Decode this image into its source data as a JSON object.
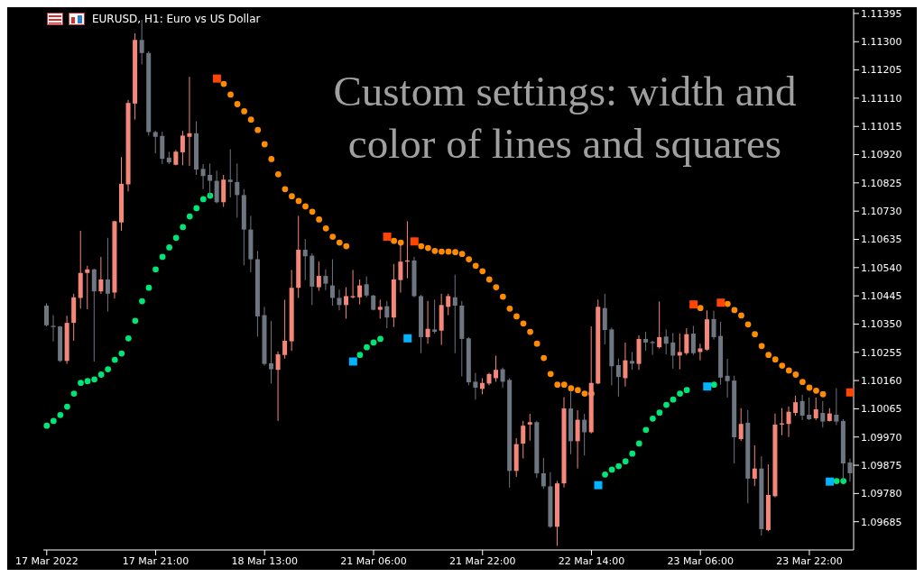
{
  "chart_data": {
    "type": "candlestick",
    "title": "Custom settings: width and color of lines and squares",
    "subtitle": "EURUSD, H1:  Euro vs US Dollar",
    "categories": [
      "17 Mar 2022",
      null,
      null,
      null,
      null,
      null,
      null,
      null,
      null,
      null,
      null,
      null,
      null,
      null,
      null,
      null,
      "17 Mar 21:00",
      null,
      null,
      null,
      null,
      null,
      null,
      null,
      null,
      null,
      null,
      null,
      null,
      null,
      null,
      null,
      "18 Mar 13:00",
      null,
      null,
      null,
      null,
      null,
      null,
      null,
      null,
      null,
      null,
      null,
      null,
      null,
      null,
      null,
      "21 Mar 06:00",
      null,
      null,
      null,
      null,
      null,
      null,
      null,
      null,
      null,
      null,
      null,
      null,
      null,
      null,
      null,
      "21 Mar 22:00",
      null,
      null,
      null,
      null,
      null,
      null,
      null,
      null,
      null,
      null,
      null,
      null,
      null,
      null,
      null,
      "22 Mar 14:00",
      null,
      null,
      null,
      null,
      null,
      null,
      null,
      null,
      null,
      null,
      null,
      null,
      null,
      null,
      null,
      "23 Mar 06:00",
      null,
      null,
      null,
      null,
      null,
      null,
      null,
      null,
      null,
      null,
      null,
      null,
      null,
      null,
      null,
      "23 Mar 22:00",
      null,
      null,
      null,
      null,
      null,
      null
    ],
    "ohlc": [
      [
        1.10412,
        1.1042,
        1.10342,
        1.10346
      ],
      [
        1.10344,
        1.1038,
        1.10292,
        1.1034
      ],
      [
        1.10342,
        1.10344,
        1.10222,
        1.10226
      ],
      [
        1.10226,
        1.10378,
        1.10216,
        1.10354
      ],
      [
        1.10354,
        1.10452,
        1.10294,
        1.1044
      ],
      [
        1.10438,
        1.10664,
        1.10402,
        1.10522
      ],
      [
        1.10522,
        1.10546,
        1.104,
        1.10534
      ],
      [
        1.10534,
        1.10536,
        1.10224,
        1.1046
      ],
      [
        1.1046,
        1.10576,
        1.10452,
        1.105
      ],
      [
        1.105,
        1.1064,
        1.10392,
        1.10452
      ],
      [
        1.10456,
        1.10698,
        1.10436,
        1.10696
      ],
      [
        1.10692,
        1.10912,
        1.10664,
        1.10822
      ],
      [
        1.1082,
        1.11104,
        1.10796,
        1.11094
      ],
      [
        1.11092,
        1.11328,
        1.11038,
        1.11306
      ],
      [
        1.11306,
        1.11374,
        1.11224,
        1.11262
      ],
      [
        1.11262,
        1.11268,
        1.10984,
        1.10996
      ],
      [
        1.10996,
        1.11,
        1.10924,
        1.1098
      ],
      [
        1.10983,
        1.10997,
        1.10888,
        1.10906
      ],
      [
        1.1091,
        1.1093,
        1.10888,
        1.10894
      ],
      [
        1.10886,
        1.10936,
        1.10884,
        1.1093
      ],
      [
        1.10928,
        1.11,
        1.10884,
        1.10984
      ],
      [
        1.1098,
        1.11182,
        1.10882,
        1.10992
      ],
      [
        1.10992,
        1.11032,
        1.10852,
        1.1087
      ],
      [
        1.10872,
        1.10888,
        1.10804,
        1.10848
      ],
      [
        1.10852,
        1.1089,
        1.1078,
        1.10832
      ],
      [
        1.10832,
        1.10866,
        1.10756,
        1.1076
      ],
      [
        1.1076,
        1.10852,
        1.10744,
        1.10836
      ],
      [
        1.10836,
        1.10938,
        1.10776,
        1.10828
      ],
      [
        1.10828,
        1.1089,
        1.10708,
        1.10784
      ],
      [
        1.10784,
        1.10804,
        1.10548,
        1.10668
      ],
      [
        1.10668,
        1.10714,
        1.10524,
        1.10568
      ],
      [
        1.10568,
        1.10596,
        1.10308,
        1.10376
      ],
      [
        1.1038,
        1.10408,
        1.1021,
        1.10216
      ],
      [
        1.10218,
        1.1036,
        1.1015,
        1.10198
      ],
      [
        1.10196,
        1.10258,
        1.10024,
        1.10248
      ],
      [
        1.10246,
        1.10432,
        1.10234,
        1.10294
      ],
      [
        1.10292,
        1.10532,
        1.1026,
        1.10472
      ],
      [
        1.10472,
        1.10714,
        1.10438,
        1.106
      ],
      [
        1.106,
        1.10636,
        1.10498,
        1.10578
      ],
      [
        1.1058,
        1.10588,
        1.10414,
        1.10476
      ],
      [
        1.10474,
        1.1056,
        1.10462,
        1.10512
      ],
      [
        1.10512,
        1.10534,
        1.10464,
        1.10486
      ],
      [
        1.1048,
        1.10568,
        1.10412,
        1.10438
      ],
      [
        1.10438,
        1.10466,
        1.10396,
        1.10414
      ],
      [
        1.10414,
        1.10474,
        1.10368,
        1.10444
      ],
      [
        1.1044,
        1.10532,
        1.10436,
        1.10444
      ],
      [
        1.1044,
        1.105,
        1.10416,
        1.1048
      ],
      [
        1.10484,
        1.1051,
        1.1044,
        1.10446
      ],
      [
        1.10446,
        1.10448,
        1.10396,
        1.10398
      ],
      [
        1.10398,
        1.10432,
        1.10368,
        1.10408
      ],
      [
        1.1041,
        1.10428,
        1.10336,
        1.10372
      ],
      [
        1.10372,
        1.10552,
        1.1034,
        1.105
      ],
      [
        1.10498,
        1.1062,
        1.10456,
        1.1056
      ],
      [
        1.1056,
        1.10696,
        1.10504,
        1.10564
      ],
      [
        1.10564,
        1.10576,
        1.1044,
        1.10444
      ],
      [
        1.10444,
        1.10448,
        1.10252,
        1.10306
      ],
      [
        1.10306,
        1.10428,
        1.10284,
        1.10334
      ],
      [
        1.10332,
        1.10432,
        1.10318,
        1.10324
      ],
      [
        1.10328,
        1.10452,
        1.1028,
        1.10414
      ],
      [
        1.10408,
        1.10452,
        1.1038,
        1.10444
      ],
      [
        1.1044,
        1.10516,
        1.10252,
        1.10412
      ],
      [
        1.10412,
        1.10428,
        1.10174,
        1.103
      ],
      [
        1.10302,
        1.10306,
        1.10144,
        1.10154
      ],
      [
        1.10156,
        1.10186,
        1.10096,
        1.10136
      ],
      [
        1.10132,
        1.10168,
        1.10114,
        1.10152
      ],
      [
        1.1015,
        1.10186,
        1.10144,
        1.10182
      ],
      [
        1.10168,
        1.10244,
        1.10156,
        1.10196
      ],
      [
        1.10198,
        1.10204,
        1.10136,
        1.10156
      ],
      [
        1.10162,
        1.10168,
        1.098,
        1.09856
      ],
      [
        1.09856,
        1.09966,
        1.09836,
        1.09946
      ],
      [
        1.09948,
        1.10024,
        1.09898,
        1.10008
      ],
      [
        1.10012,
        1.10048,
        1.09958,
        1.1002
      ],
      [
        1.1002,
        1.10024,
        1.09832,
        1.09848
      ],
      [
        1.09848,
        1.099,
        1.09796,
        1.09804
      ],
      [
        1.09804,
        1.09852,
        1.09664,
        1.09668
      ],
      [
        1.09668,
        1.09822,
        1.09604,
        1.09814
      ],
      [
        1.09814,
        1.10104,
        1.098,
        1.10066
      ],
      [
        1.10066,
        1.10128,
        1.09912,
        1.09956
      ],
      [
        1.09956,
        1.1006,
        1.09864,
        1.10028
      ],
      [
        1.10028,
        1.10048,
        1.09908,
        1.09986
      ],
      [
        1.09986,
        1.10342,
        1.09982,
        1.10152
      ],
      [
        1.1015,
        1.10432,
        1.10148,
        1.10408
      ],
      [
        1.10404,
        1.10452,
        1.10282,
        1.1033
      ],
      [
        1.10332,
        1.10338,
        1.10144,
        1.10208
      ],
      [
        1.10212,
        1.10234,
        1.10106,
        1.10172
      ],
      [
        1.10168,
        1.10288,
        1.1014,
        1.10228
      ],
      [
        1.10226,
        1.10256,
        1.10196,
        1.10217
      ],
      [
        1.10216,
        1.10312,
        1.10196,
        1.103
      ],
      [
        1.103,
        1.10324,
        1.1026,
        1.10288
      ],
      [
        1.1029,
        1.10294,
        1.10246,
        1.10286
      ],
      [
        1.10272,
        1.10426,
        1.10268,
        1.10306
      ],
      [
        1.10308,
        1.10332,
        1.10248,
        1.10284
      ],
      [
        1.10288,
        1.1032,
        1.102,
        1.10244
      ],
      [
        1.10244,
        1.10318,
        1.10198,
        1.10256
      ],
      [
        1.10252,
        1.10336,
        1.10246,
        1.10316
      ],
      [
        1.10318,
        1.10344,
        1.10246,
        1.10252
      ],
      [
        1.10256,
        1.10284,
        1.10228,
        1.10268
      ],
      [
        1.10264,
        1.10396,
        1.1026,
        1.10366
      ],
      [
        1.10367,
        1.10395,
        1.10298,
        1.10306
      ],
      [
        1.1031,
        1.10358,
        1.10146,
        1.1017
      ],
      [
        1.10176,
        1.10233,
        1.10103,
        1.10158
      ],
      [
        1.1016,
        1.10176,
        1.09881,
        1.09969
      ],
      [
        1.09963,
        1.10067,
        1.09957,
        1.10014
      ],
      [
        1.10018,
        1.10061,
        1.09747,
        1.0983
      ],
      [
        1.0983,
        1.09942,
        1.09805,
        1.09864
      ],
      [
        1.09864,
        1.09905,
        1.09638,
        1.0966
      ],
      [
        1.09657,
        1.09878,
        1.09653,
        1.09775
      ],
      [
        1.09771,
        1.10049,
        1.09767,
        1.10012
      ],
      [
        1.10012,
        1.10067,
        1.09976,
        1.10016
      ],
      [
        1.10014,
        1.10073,
        1.0997,
        1.10055
      ],
      [
        1.10051,
        1.10109,
        1.10042,
        1.10087
      ],
      [
        1.10091,
        1.10112,
        1.10027,
        1.10042
      ],
      [
        1.10045,
        1.10103,
        1.10027,
        1.1003
      ],
      [
        1.10033,
        1.10103,
        1.10027,
        1.10063
      ],
      [
        1.10051,
        1.10091,
        1.10002,
        1.10022
      ],
      [
        1.10024,
        1.10067,
        1.10022,
        1.10049
      ],
      [
        1.10045,
        1.10134,
        1.1001,
        1.10022
      ],
      [
        1.10024,
        1.1003,
        1.09824,
        1.09881
      ],
      [
        1.09884,
        1.09897,
        1.0982,
        1.09848
      ]
    ],
    "colors": [
      "#6e7681",
      "#6e7681",
      "#6e7681",
      "#f5877a",
      "#f5877a",
      "#f5877a",
      "#f5877a",
      "#6e7681",
      "#f5877a",
      "#6e7681",
      "#f5877a",
      "#f5877a",
      "#f5877a",
      "#f5877a",
      "#6e7681",
      "#6e7681",
      "#6e7681",
      "#6e7681",
      "#6e7681",
      "#f5877a",
      "#f5877a",
      "#f5877a",
      "#6e7681",
      "#6e7681",
      "#6e7681",
      "#6e7681",
      "#f5877a",
      "#6e7681",
      "#6e7681",
      "#6e7681",
      "#6e7681",
      "#6e7681",
      "#6e7681",
      "#6e7681",
      "#f5877a",
      "#f5877a",
      "#f5877a",
      "#f5877a",
      "#6e7681",
      "#6e7681",
      "#f5877a",
      "#6e7681",
      "#6e7681",
      "#6e7681",
      "#f5877a",
      "#f5877a",
      "#f5877a",
      "#6e7681",
      "#6e7681",
      "#f5877a",
      "#6e7681",
      "#f5877a",
      "#f5877a",
      "#f5877a",
      "#6e7681",
      "#6e7681",
      "#f5877a",
      "#6e7681",
      "#f5877a",
      "#f5877a",
      "#6e7681",
      "#6e7681",
      "#6e7681",
      "#6e7681",
      "#f5877a",
      "#f5877a",
      "#f5877a",
      "#6e7681",
      "#6e7681",
      "#f5877a",
      "#f5877a",
      "#f5877a",
      "#6e7681",
      "#6e7681",
      "#6e7681",
      "#f5877a",
      "#f5877a",
      "#6e7681",
      "#f5877a",
      "#6e7681",
      "#f5877a",
      "#f5877a",
      "#6e7681",
      "#6e7681",
      "#6e7681",
      "#f5877a",
      "#6e7681",
      "#f5877a",
      "#6e7681",
      "#6e7681",
      "#f5877a",
      "#6e7681",
      "#6e7681",
      "#f5877a",
      "#f5877a",
      "#6e7681",
      "#f5877a",
      "#f5877a",
      "#6e7681",
      "#6e7681",
      "#6e7681",
      "#6e7681",
      "#f5877a",
      "#6e7681",
      "#f5877a",
      "#6e7681",
      "#f5877a",
      "#f5877a",
      "#f5877a",
      "#f5877a",
      "#f5877a",
      "#6e7681",
      "#6e7681",
      "#f5877a",
      "#6e7681",
      "#f5877a",
      "#6e7681",
      "#6e7681",
      "#6e7681"
    ],
    "series": [
      {
        "type": "scatter",
        "marker": "circle",
        "color": "#ff8c00",
        "values": [
          null,
          null,
          null,
          null,
          null,
          null,
          null,
          null,
          null,
          null,
          null,
          null,
          null,
          null,
          null,
          null,
          null,
          null,
          null,
          null,
          null,
          null,
          null,
          null,
          null,
          null,
          1.11158,
          1.11122,
          1.1109,
          1.11066,
          1.11038,
          1.11003,
          1.10955,
          1.10905,
          1.10854,
          1.10804,
          1.1078,
          1.10764,
          1.10746,
          1.10728,
          1.10702,
          1.10672,
          1.10644,
          1.10624,
          1.10612,
          null,
          null,
          null,
          null,
          null,
          null,
          1.1063,
          1.10624,
          null,
          null,
          1.10612,
          1.10606,
          1.10596,
          1.10594,
          1.10594,
          1.10592,
          1.10586,
          1.10568,
          1.10546,
          1.10528,
          1.105,
          1.10474,
          1.10442,
          1.10402,
          1.10376,
          1.10352,
          1.10324,
          1.10284,
          1.10236,
          1.10182,
          1.10146,
          1.10146,
          1.10134,
          1.10128,
          1.10116,
          1.10116,
          null,
          null,
          null,
          null,
          null,
          null,
          null,
          null,
          null,
          null,
          null,
          null,
          null,
          null,
          null,
          1.10404,
          null,
          null,
          null,
          1.10418,
          1.10397,
          1.10379,
          1.10349,
          1.10316,
          1.10276,
          1.10246,
          1.10231,
          1.1021,
          1.10194,
          1.1018,
          1.10155,
          1.10136,
          1.10126,
          1.10114,
          null,
          null,
          null,
          null
        ]
      },
      {
        "type": "scatter",
        "marker": "square",
        "color": "#ff4500",
        "values": [
          null,
          null,
          null,
          null,
          null,
          null,
          null,
          null,
          null,
          null,
          null,
          null,
          null,
          null,
          null,
          null,
          null,
          null,
          null,
          null,
          null,
          null,
          null,
          null,
          null,
          1.11176,
          null,
          null,
          null,
          null,
          null,
          null,
          null,
          null,
          null,
          null,
          null,
          null,
          null,
          null,
          null,
          null,
          null,
          null,
          null,
          null,
          null,
          null,
          null,
          null,
          1.10644,
          null,
          null,
          null,
          1.10628,
          null,
          null,
          null,
          null,
          null,
          null,
          null,
          null,
          null,
          null,
          null,
          null,
          null,
          null,
          null,
          null,
          null,
          null,
          null,
          null,
          null,
          null,
          null,
          null,
          null,
          null,
          null,
          null,
          null,
          null,
          null,
          null,
          null,
          null,
          null,
          null,
          null,
          null,
          null,
          null,
          1.10416,
          null,
          null,
          null,
          1.10422,
          null,
          null,
          null,
          null,
          null,
          null,
          null,
          null,
          null,
          null,
          null,
          null,
          null,
          null,
          null,
          null,
          null,
          null,
          1.1012
        ]
      },
      {
        "type": "scatter",
        "marker": "circle",
        "color": "#00e676",
        "values": [
          1.10008,
          1.10024,
          1.10044,
          1.10072,
          1.10116,
          1.10152,
          1.10158,
          1.10164,
          1.1018,
          1.10198,
          1.1023,
          1.10251,
          1.10302,
          1.10361,
          1.10427,
          1.10472,
          1.10534,
          1.10576,
          1.10608,
          1.1064,
          1.10676,
          1.10712,
          1.1074,
          1.1077,
          1.10782,
          null,
          null,
          null,
          null,
          null,
          null,
          null,
          null,
          null,
          null,
          null,
          null,
          null,
          null,
          null,
          null,
          null,
          null,
          null,
          null,
          null,
          1.10246,
          1.10272,
          1.10288,
          1.103,
          null,
          null,
          null,
          null,
          null,
          null,
          null,
          null,
          null,
          null,
          null,
          null,
          null,
          null,
          null,
          null,
          null,
          null,
          null,
          null,
          null,
          null,
          null,
          null,
          null,
          null,
          null,
          null,
          null,
          null,
          null,
          null,
          1.09844,
          1.0986,
          1.09872,
          1.09888,
          1.09914,
          1.09948,
          1.09994,
          1.10032,
          1.10052,
          1.10078,
          1.10096,
          1.10116,
          1.10128,
          null,
          null,
          null,
          1.10146,
          null,
          null,
          null,
          null,
          null,
          null,
          null,
          null,
          null,
          null,
          null,
          null,
          null,
          null,
          null,
          null,
          null,
          1.09822,
          1.09822,
          null
        ]
      },
      {
        "type": "scatter",
        "marker": "square",
        "color": "#00b4ff",
        "values": [
          null,
          null,
          null,
          null,
          null,
          null,
          null,
          null,
          null,
          null,
          null,
          null,
          null,
          null,
          null,
          null,
          null,
          null,
          null,
          null,
          null,
          null,
          null,
          null,
          null,
          null,
          null,
          null,
          null,
          null,
          null,
          null,
          null,
          null,
          null,
          null,
          null,
          null,
          null,
          null,
          null,
          null,
          null,
          null,
          null,
          1.10224,
          null,
          null,
          null,
          null,
          null,
          null,
          null,
          1.10302,
          null,
          null,
          null,
          null,
          null,
          null,
          null,
          null,
          null,
          null,
          null,
          null,
          null,
          null,
          null,
          null,
          null,
          null,
          null,
          null,
          null,
          null,
          null,
          null,
          null,
          null,
          null,
          1.09808,
          null,
          null,
          null,
          null,
          null,
          null,
          null,
          null,
          null,
          null,
          null,
          null,
          null,
          null,
          null,
          1.1014,
          null,
          null,
          null,
          null,
          null,
          null,
          null,
          null,
          null,
          null,
          null,
          null,
          null,
          null,
          null,
          null,
          null,
          1.0982,
          null,
          null,
          null
        ]
      }
    ],
    "ylim": [
      1.0959,
      1.1141
    ],
    "yticks": [
      1.11395,
      {
        "value": 1.113,
        "label": "1.11300"
      },
      1.11205,
      {
        "value": 1.1111,
        "label": "1.11110"
      },
      1.11015,
      {
        "value": 1.1092,
        "label": "1.10920"
      },
      1.10825,
      {
        "value": 1.1073,
        "label": "1.10730"
      },
      1.10635,
      {
        "value": 1.1054,
        "label": "1.10540"
      },
      1.10445,
      {
        "value": 1.1035,
        "label": "1.10350"
      },
      1.10255,
      {
        "value": 1.1016,
        "label": "1.10160"
      },
      1.10065,
      {
        "value": 1.0997,
        "label": "1.09970"
      },
      1.09875,
      {
        "value": 1.0978,
        "label": "1.09780"
      },
      1.09685
    ]
  }
}
